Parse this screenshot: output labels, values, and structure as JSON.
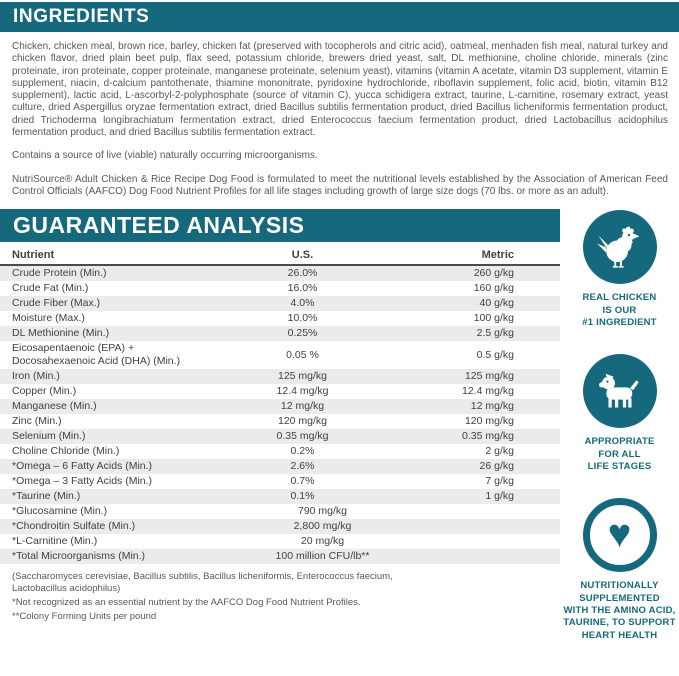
{
  "colors": {
    "teal": "#16697c",
    "row_alt": "#ebebeb"
  },
  "ingredients": {
    "title": "INGREDIENTS",
    "body": "Chicken, chicken meal, brown rice, barley, chicken fat (preserved with tocopherols and citric acid), oatmeal, menhaden fish meal, natural turkey and chicken flavor, dried plain beet pulp, flax seed, potassium chloride, brewers dried yeast, salt, DL methionine, choline chloride, minerals (zinc proteinate, iron proteinate, copper proteinate, manganese proteinate, selenium yeast), vitamins (vitamin A acetate, vitamin D3 supplement, vitamin E supplement, niacin, d-calcium pantothenate, thiamine mononitrate, pyridoxine hydrochloride, riboflavin supplement, folic acid, biotin, vitamin B12 supplement), lactic acid, L-ascorbyl-2-polyphosphate (source of vitamin C), yucca schidigera extract, taurine, L-carnitine, rosemary extract, yeast culture, dried Aspergillus oryzae fermentation extract, dried Bacillus subtilis fermentation product, dried Bacillus licheniformis fermentation product, dried Trichoderma longibrachiatum fermentation extract, dried Enterococcus faecium fermentation product, dried Lactobacillus acidophilus fermentation product, and dried Bacillus subtilis fermentation extract.",
    "note": "Contains a source of live (viable) naturally occurring microorganisms.",
    "aafco": "NutriSource® Adult Chicken & Rice Recipe Dog Food is formulated to meet the nutritional levels established by the Association of American Feed Control Officials (AAFCO) Dog Food Nutrient Profiles for all life stages including growth of large size dogs (70 lbs. or more as an adult)."
  },
  "analysis": {
    "title": "GUARANTEED ANALYSIS",
    "columns": [
      "Nutrient",
      "U.S.",
      "Metric"
    ],
    "rows": [
      {
        "nutrient": "Crude Protein (Min.)",
        "us": "26.0%",
        "metric": "260 g/kg"
      },
      {
        "nutrient": "Crude Fat (Min.)",
        "us": "16.0%",
        "metric": "160 g/kg"
      },
      {
        "nutrient": "Crude Fiber (Max.)",
        "us": "4.0%",
        "metric": "40 g/kg"
      },
      {
        "nutrient": "Moisture (Max.)",
        "us": "10.0%",
        "metric": "100 g/kg"
      },
      {
        "nutrient": "DL Methionine (Min.)",
        "us": "0.25%",
        "metric": "2.5 g/kg"
      },
      {
        "nutrient": "Eicosapentaenoic (EPA) +\nDocosahexaenoic Acid (DHA) (Min.)",
        "us": "0.05 %",
        "metric": "0.5 g/kg"
      },
      {
        "nutrient": "Iron (Min.)",
        "us": "125 mg/kg",
        "metric": "125 mg/kg"
      },
      {
        "nutrient": "Copper (Min.)",
        "us": "12.4 mg/kg",
        "metric": "12.4 mg/kg"
      },
      {
        "nutrient": "Manganese (Min.)",
        "us": "12 mg/kg",
        "metric": "12 mg/kg"
      },
      {
        "nutrient": "Zinc (Min.)",
        "us": "120 mg/kg",
        "metric": "120 mg/kg"
      },
      {
        "nutrient": "Selenium (Min.)",
        "us": "0.35 mg/kg",
        "metric": "0.35 mg/kg"
      },
      {
        "nutrient": "Choline Chloride (Min.)",
        "us": "0.2%",
        "metric": "2 g/kg"
      },
      {
        "nutrient": "*Omega – 6 Fatty Acids (Min.)",
        "us": "2.6%",
        "metric": "26 g/kg"
      },
      {
        "nutrient": "*Omega – 3 Fatty Acids (Min.)",
        "us": "0.7%",
        "metric": "7 g/kg"
      },
      {
        "nutrient": "*Taurine (Min.)",
        "us": "0.1%",
        "metric": "1 g/kg"
      },
      {
        "nutrient": "*Glucosamine (Min.)",
        "value": "790 mg/kg"
      },
      {
        "nutrient": "*Chondroitin Sulfate (Min.)",
        "value": "2,800 mg/kg"
      },
      {
        "nutrient": "*L-Carnitine (Min.)",
        "value": "20 mg/kg"
      },
      {
        "nutrient": "*Total Microorganisms (Min.)",
        "value": "100 million CFU/lb**"
      }
    ],
    "footnotes": [
      "(Saccharomyces cerevisiae, Bacillus subtilis, Bacillus licheniformis, Enterococcus faecium,\nLactobacillus acidophilus)",
      "*Not recognized as an essential nutrient by the AAFCO Dog Food Nutrient Profiles.",
      "**Colony Forming Units per pound"
    ]
  },
  "badges": [
    {
      "icon": "chicken-icon",
      "label": "REAL CHICKEN\nIS OUR\n#1 INGREDIENT"
    },
    {
      "icon": "dog-icon",
      "label": "APPROPRIATE\nFOR ALL\nLIFE STAGES"
    },
    {
      "icon": "heart-icon",
      "label": "NUTRITIONALLY\nSUPPLEMENTED\nWITH THE AMINO ACID,\nTAURINE, TO SUPPORT\nHEART HEALTH"
    }
  ]
}
